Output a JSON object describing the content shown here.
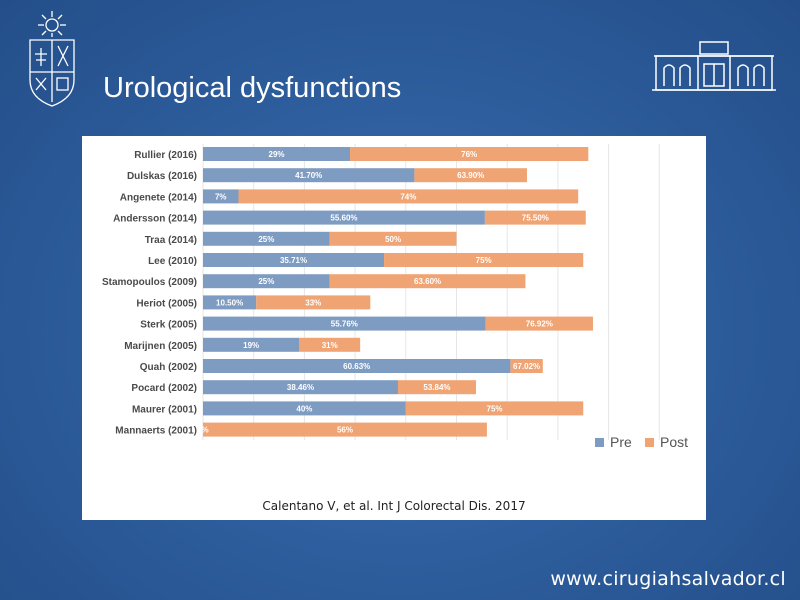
{
  "slide": {
    "title": "Urological dysfunctions",
    "citation": "Calentano V, et al. Int J Colorectal Dis. 2017",
    "footer_url": "www.cirugiahsalvador.cl"
  },
  "icons": {
    "left_logo": "university-crest-icon",
    "right_logo": "hospital-building-icon"
  },
  "colors": {
    "pre": "#7e9cc2",
    "post": "#f0a473",
    "label_text": "#4a4a4a",
    "gridline": "#e6e6e6"
  },
  "chart_data": {
    "type": "bar",
    "orientation": "horizontal",
    "stacked": true,
    "title": "",
    "xlabel": "",
    "ylabel": "",
    "grid": true,
    "legend_position": "bottom-right",
    "categories": [
      "Rullier (2016)",
      "Dulskas (2016)",
      "Angenete (2014)",
      "Andersson (2014)",
      "Traa (2014)",
      "Lee (2010)",
      "Stamopoulos (2009)",
      "Heriot (2005)",
      "Sterk (2005)",
      "Marijnen (2005)",
      "Quah (2002)",
      "Pocard (2002)",
      "Maurer (2001)",
      "Mannaerts (2001)"
    ],
    "series": [
      {
        "name": "Pre",
        "color": "#7e9cc2",
        "values": [
          29,
          41.7,
          7,
          55.6,
          25,
          35.71,
          25,
          10.5,
          55.76,
          19,
          60.63,
          38.46,
          40,
          0
        ],
        "labels": [
          "29%",
          "41.70%",
          "7%",
          "55.60%",
          "25%",
          "35.71%",
          "25%",
          "10.50%",
          "55.76%",
          "19%",
          "60.63%",
          "38.46%",
          "40%",
          "%"
        ]
      },
      {
        "name": "Post",
        "color": "#f0a473",
        "values": [
          76,
          63.9,
          74,
          75.5,
          50,
          75,
          63.6,
          33,
          76.92,
          31,
          67.02,
          53.84,
          75,
          56
        ],
        "labels": [
          "76%",
          "63.90%",
          "74%",
          "75.50%",
          "50%",
          "75%",
          "63.60%",
          "33%",
          "76.92%",
          "31%",
          "67.02%",
          "53.84%",
          "75%",
          "56%"
        ]
      }
    ]
  }
}
